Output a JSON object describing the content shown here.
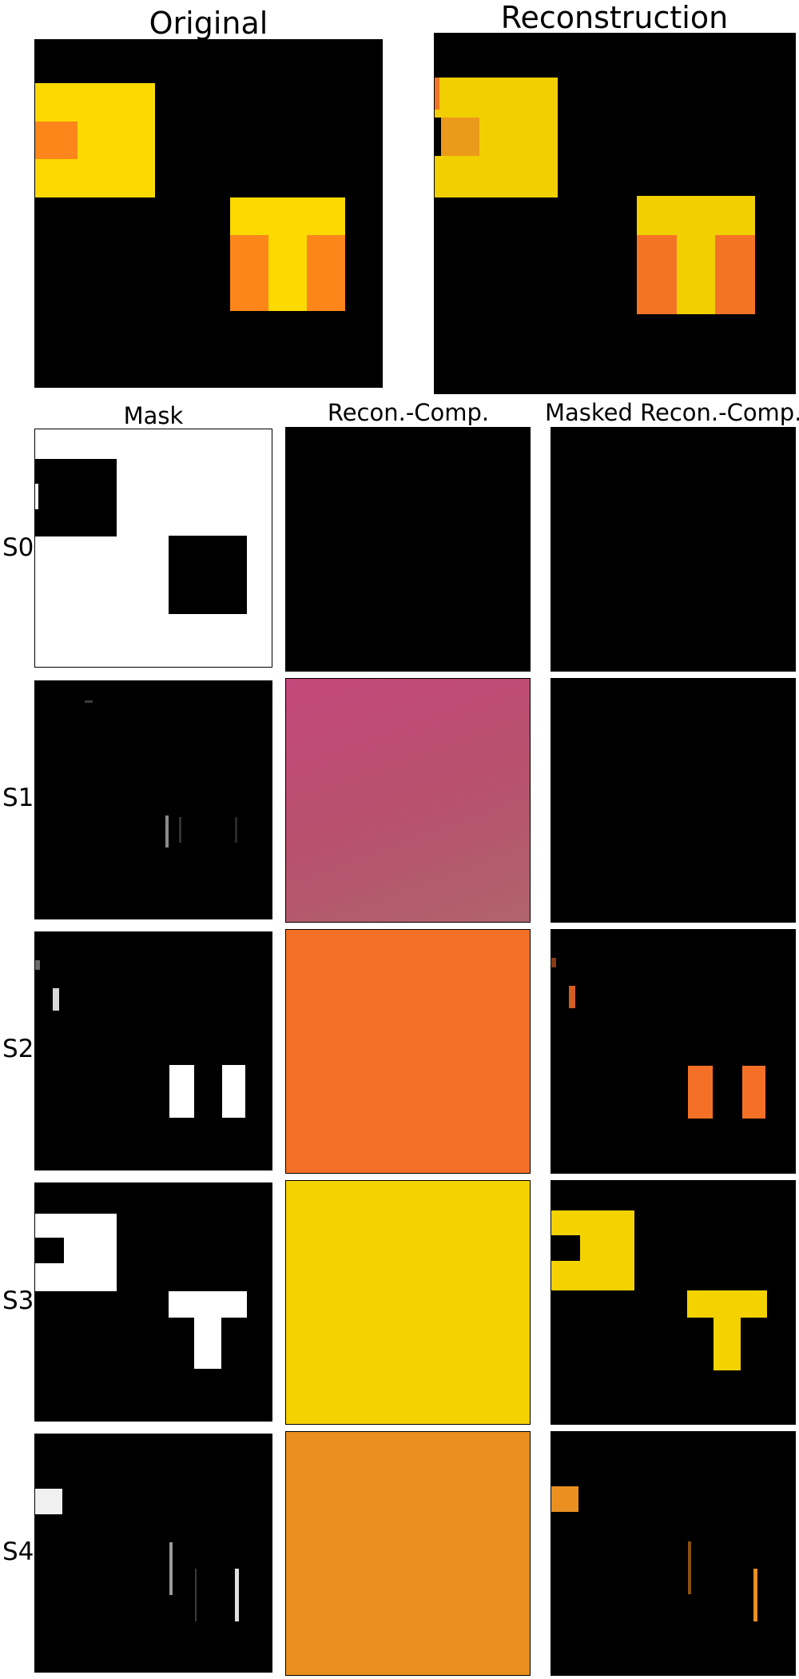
{
  "figure": {
    "top_titles": {
      "original": "Original",
      "reconstruction": "Reconstruction"
    },
    "column_titles": {
      "mask": "Mask",
      "recon_comp": "Recon.-Comp.",
      "masked_recon_comp": "Masked Recon.-Comp."
    },
    "slots": [
      {
        "label": "S0",
        "component_color": "#000000"
      },
      {
        "label": "S1",
        "component_color": "#b04a78"
      },
      {
        "label": "S2",
        "component_color": "#f47026"
      },
      {
        "label": "S3",
        "component_color": "#f3d200"
      },
      {
        "label": "S4",
        "component_color": "#ea8f20"
      }
    ],
    "colors": {
      "yellow": "#fcd900",
      "orange": "#fc8619",
      "recon_yellow": "#f2cf00",
      "recon_orange": "#f47426",
      "background": "#000000",
      "mask_on": "#ffffff"
    }
  }
}
